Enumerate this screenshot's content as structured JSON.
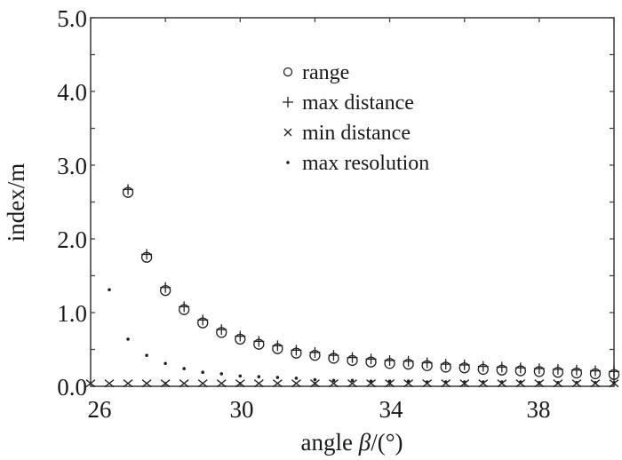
{
  "chart_data": {
    "type": "scatter",
    "title": "",
    "xlabel_prefix": "angle ",
    "xlabel_symbol": "β",
    "xlabel_suffix": "/(°)",
    "ylabel": "index/m",
    "xlim": [
      26,
      40
    ],
    "ylim": [
      0,
      5
    ],
    "x_ticks": [
      26,
      30,
      34,
      38
    ],
    "x_tick_labels": [
      "26",
      "30",
      "34",
      "38"
    ],
    "y_ticks": [
      0,
      1,
      2,
      3,
      4,
      5
    ],
    "y_tick_labels": [
      "0.0",
      "1.0",
      "2.0",
      "3.0",
      "4.0",
      "5.0"
    ],
    "grid": false,
    "legend_position": "top-center",
    "series": [
      {
        "name": "range",
        "marker": "circle",
        "x": [
          27,
          27.5,
          28,
          28.5,
          29,
          29.5,
          30,
          30.5,
          31,
          31.5,
          32,
          32.5,
          33,
          33.5,
          34,
          34.5,
          35,
          35.5,
          36,
          36.5,
          37,
          37.5,
          38,
          38.5,
          39,
          39.5,
          40
        ],
        "y": [
          2.63,
          1.75,
          1.3,
          1.04,
          0.86,
          0.73,
          0.64,
          0.57,
          0.51,
          0.45,
          0.42,
          0.38,
          0.35,
          0.33,
          0.31,
          0.3,
          0.28,
          0.26,
          0.25,
          0.23,
          0.22,
          0.21,
          0.2,
          0.19,
          0.18,
          0.17,
          0.16
        ]
      },
      {
        "name": "max distance",
        "marker": "plus",
        "x": [
          27,
          27.5,
          28,
          28.5,
          29,
          29.5,
          30,
          30.5,
          31,
          31.5,
          32,
          32.5,
          33,
          33.5,
          34,
          34.5,
          35,
          35.5,
          36,
          36.5,
          37,
          37.5,
          38,
          38.5,
          39,
          39.5,
          40
        ],
        "y": [
          2.67,
          1.79,
          1.34,
          1.08,
          0.9,
          0.77,
          0.68,
          0.61,
          0.55,
          0.49,
          0.46,
          0.42,
          0.39,
          0.37,
          0.35,
          0.34,
          0.32,
          0.3,
          0.29,
          0.27,
          0.26,
          0.25,
          0.24,
          0.23,
          0.22,
          0.21,
          0.2
        ]
      },
      {
        "name": "min distance",
        "marker": "x",
        "x": [
          26,
          26.5,
          27,
          27.5,
          28,
          28.5,
          29,
          29.5,
          30,
          30.5,
          31,
          31.5,
          32,
          32.5,
          33,
          33.5,
          34,
          34.5,
          35,
          35.5,
          36,
          36.5,
          37,
          37.5,
          38,
          38.5,
          39,
          39.5,
          40
        ],
        "y": [
          0.04,
          0.04,
          0.04,
          0.04,
          0.04,
          0.04,
          0.04,
          0.04,
          0.04,
          0.04,
          0.04,
          0.04,
          0.04,
          0.04,
          0.04,
          0.04,
          0.04,
          0.04,
          0.04,
          0.04,
          0.04,
          0.04,
          0.04,
          0.04,
          0.04,
          0.04,
          0.04,
          0.04,
          0.04
        ]
      },
      {
        "name": "max resolution",
        "marker": "dot",
        "x": [
          26.5,
          27,
          27.5,
          28,
          28.5,
          29,
          29.5,
          30,
          30.5,
          31,
          31.5,
          32,
          32.5,
          33,
          33.5,
          34,
          34.5,
          35,
          35.5,
          36,
          36.5,
          37,
          37.5,
          38,
          38.5,
          39,
          39.5,
          40
        ],
        "y": [
          1.31,
          0.64,
          0.42,
          0.31,
          0.24,
          0.19,
          0.17,
          0.14,
          0.13,
          0.12,
          0.11,
          0.09,
          0.08,
          0.08,
          0.07,
          0.07,
          0.07,
          0.06,
          0.06,
          0.06,
          0.06,
          0.06,
          0.06,
          0.05,
          0.05,
          0.05,
          0.05,
          0.05
        ]
      }
    ],
    "legend": [
      {
        "symbol": "○",
        "label": "range"
      },
      {
        "symbol": "+",
        "label": "max distance"
      },
      {
        "symbol": "×",
        "label": "min distance"
      },
      {
        "symbol": "·",
        "label": "max resolution"
      }
    ]
  }
}
